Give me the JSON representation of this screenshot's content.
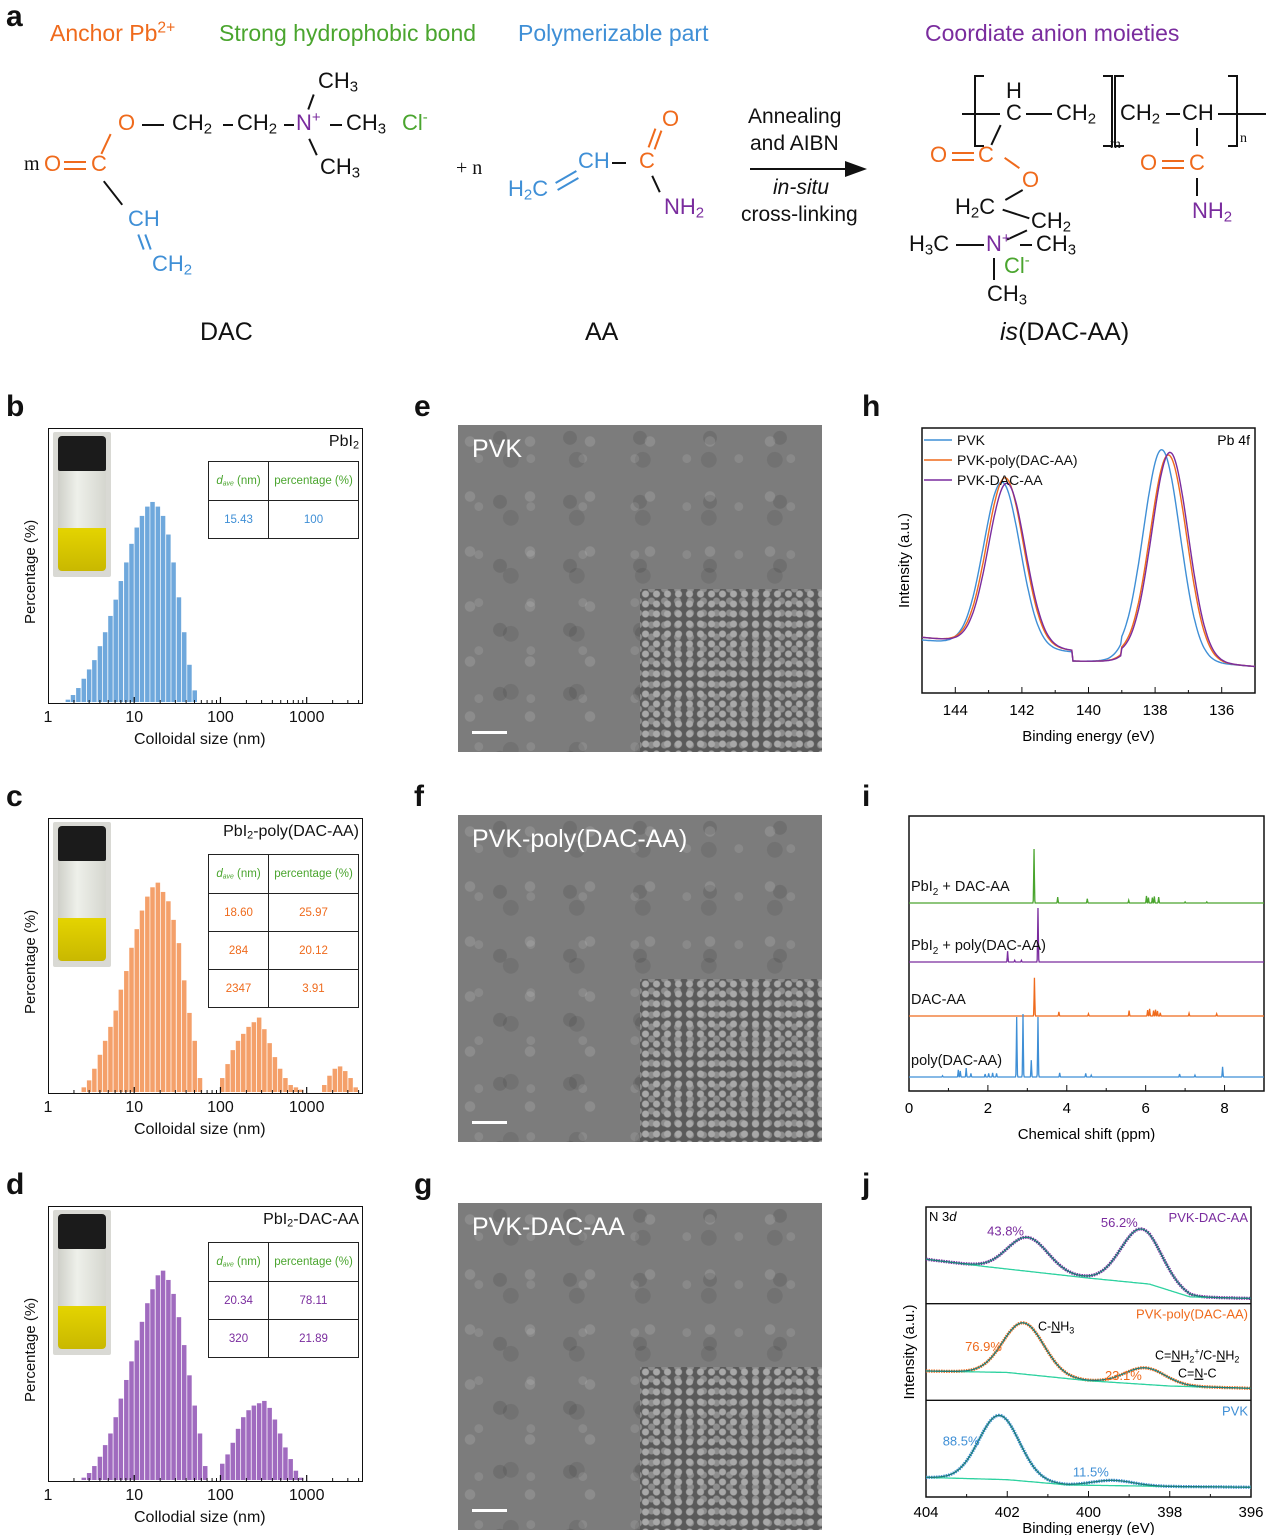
{
  "panel_labels": {
    "a": "a",
    "b": "b",
    "c": "c",
    "d": "d",
    "e": "e",
    "f": "f",
    "g": "g",
    "h": "h",
    "i": "i",
    "j": "j"
  },
  "panel_a": {
    "headers": {
      "anchor": "Anchor Pb",
      "anchor_sup": "2+",
      "hydrophobic": "Strong hydrophobic bond",
      "polymerizable": "Polymerizable part",
      "coordinate": "Coordiate anion moieties"
    },
    "dac": {
      "m": "m",
      "o_double": "O",
      "c": "C",
      "o_ester": "O",
      "ch2_a": "CH",
      "ch2_b": "CH",
      "sub2": "2",
      "n": "N",
      "n_plus": "+",
      "ch3": "CH",
      "sub3": "3",
      "cl": "Cl",
      "cl_minus": "-",
      "ch": "CH",
      "ch2_vinyl": "CH",
      "name": "DAC"
    },
    "plus_n": "+  n",
    "aa": {
      "h2c": "H",
      "c_sub": "2",
      "c_tail": "C",
      "ch": "CH",
      "c": "C",
      "o": "O",
      "nh2": "NH",
      "name": "AA"
    },
    "arrow": {
      "line1": "Annealing",
      "line2": "and AIBN",
      "line3": "in-situ",
      "line4": "cross-linking"
    },
    "product": {
      "h": "H",
      "c": "C",
      "ch2": "CH",
      "ch": "CH",
      "m": "m",
      "n": "n",
      "o_double": "O",
      "o": "O",
      "h2c": "H",
      "ch3": "CH",
      "h3c": "H",
      "nplus": "N",
      "cl": "Cl",
      "nh2": "NH",
      "name_italic": "is",
      "name_rest": "(DAC-AA)"
    }
  },
  "dls_panels": [
    {
      "id": "b",
      "title": "PbI",
      "title_sub": "2",
      "title_rest": "",
      "color": "#6fa8dc",
      "text_color": "#3f8fd6",
      "table_header": [
        "d",
        "ave",
        " (nm)",
        "percentage (%)"
      ],
      "table_rows": [
        [
          "15.43",
          "100"
        ]
      ],
      "xlabel": "Colloidal size (nm)",
      "ylabel": "Percentage (%)",
      "xticks": [
        "1",
        "10",
        "100",
        "1000"
      ]
    },
    {
      "id": "c",
      "title": "PbI",
      "title_sub": "2",
      "title_rest": "-poly(DAC-AA)",
      "color": "#f4a06a",
      "text_color": "#ef6a1c",
      "table_header": [
        "d",
        "ave",
        " (nm)",
        "percentage (%)"
      ],
      "table_rows": [
        [
          "18.60",
          "25.97"
        ],
        [
          "284",
          "20.12"
        ],
        [
          "2347",
          "3.91"
        ]
      ],
      "xlabel": "Colloidal size (nm)",
      "ylabel": "Percentage (%)",
      "xticks": [
        "1",
        "10",
        "100",
        "1000"
      ]
    },
    {
      "id": "d",
      "title": "PbI",
      "title_sub": "2",
      "title_rest": "-DAC-AA",
      "color": "#a06bbf",
      "text_color": "#7a2c9e",
      "table_header": [
        "d",
        "ave",
        " (nm)",
        "percentage (%)"
      ],
      "table_rows": [
        [
          "20.34",
          "78.11"
        ],
        [
          "320",
          "21.89"
        ]
      ],
      "xlabel": "Collodial size (nm)",
      "ylabel": "Percentage (%)",
      "xticks": [
        "1",
        "10",
        "100",
        "1000"
      ]
    }
  ],
  "sem_panels": [
    {
      "id": "e",
      "label": "PVK"
    },
    {
      "id": "f",
      "label": "PVK-poly(DAC-AA)"
    },
    {
      "id": "g",
      "label": "PVK-DAC-AA"
    }
  ],
  "chart_data": [
    {
      "panel": "b",
      "type": "bar",
      "title": "PbI2",
      "xlabel": "Colloidal size (nm)",
      "ylabel": "Percentage (%)",
      "xscale": "log",
      "xlim": [
        1,
        4500
      ],
      "ylim": [
        0,
        100
      ],
      "x": [
        1.7,
        1.95,
        2.25,
        2.6,
        3.0,
        3.45,
        4.0,
        4.6,
        5.3,
        6.1,
        7.0,
        8.1,
        9.3,
        10.7,
        12.3,
        14.2,
        16.3,
        18.8,
        21.6,
        24.9,
        28.6,
        33.0,
        38.0,
        43.7,
        50.3
      ],
      "values": [
        1,
        3,
        6,
        10,
        14,
        18,
        24,
        30,
        37,
        44,
        52,
        60,
        68,
        75,
        80,
        84,
        86,
        84,
        80,
        72,
        60,
        45,
        30,
        16,
        5
      ]
    },
    {
      "panel": "c",
      "type": "bar",
      "title": "PbI2-poly(DAC-AA)",
      "xlabel": "Colloidal size (nm)",
      "ylabel": "Percentage (%)",
      "xscale": "log",
      "xlim": [
        1,
        4500
      ],
      "ylim": [
        0,
        100
      ],
      "x": [
        2.6,
        3.0,
        3.45,
        4.0,
        4.6,
        5.3,
        6.1,
        7.0,
        8.1,
        9.3,
        10.7,
        12.3,
        14.2,
        16.3,
        18.8,
        21.6,
        24.9,
        28.6,
        33.0,
        38.0,
        43.7,
        50.3,
        57.9,
        105,
        121,
        139,
        160,
        184,
        212,
        244,
        281,
        323,
        372,
        428,
        492,
        567,
        652,
        750,
        863,
        1600,
        1840,
        2120,
        2440,
        2800,
        3230,
        3700
      ],
      "values": [
        2,
        5,
        10,
        16,
        22,
        28,
        35,
        44,
        52,
        62,
        70,
        78,
        84,
        88,
        90,
        86,
        82,
        74,
        64,
        48,
        34,
        22,
        6,
        6,
        12,
        18,
        22,
        25,
        28,
        30,
        32,
        27,
        21,
        15,
        10,
        6,
        3,
        2,
        1,
        3,
        7,
        10,
        11,
        9,
        6,
        2
      ]
    },
    {
      "panel": "d",
      "type": "bar",
      "title": "PbI2-DAC-AA",
      "xlabel": "Collodial size (nm)",
      "ylabel": "Percentage (%)",
      "xscale": "log",
      "xlim": [
        1,
        4500
      ],
      "ylim": [
        0,
        100
      ],
      "x": [
        2.6,
        3.0,
        3.45,
        4.0,
        4.6,
        5.3,
        6.1,
        7.0,
        8.1,
        9.3,
        10.7,
        12.3,
        14.2,
        16.3,
        18.8,
        21.6,
        24.9,
        28.6,
        33.0,
        38.0,
        43.7,
        50.3,
        57.9,
        66.6,
        105,
        121,
        139,
        160,
        184,
        212,
        244,
        281,
        323,
        372,
        428,
        492,
        567,
        652,
        750,
        863
      ],
      "values": [
        1,
        3,
        6,
        10,
        15,
        20,
        27,
        35,
        43,
        51,
        60,
        68,
        76,
        82,
        88,
        90,
        86,
        80,
        70,
        58,
        45,
        32,
        20,
        6,
        7,
        11,
        16,
        22,
        27,
        30,
        32,
        33,
        34,
        31,
        26,
        20,
        14,
        9,
        4,
        1
      ]
    },
    {
      "panel": "h",
      "type": "line",
      "title": "Pb 4f",
      "xlabel": "Binding energy (eV)",
      "ylabel": "Intensity (a.u.)",
      "xlim": [
        145,
        135
      ],
      "xticks": [
        "144",
        "142",
        "140",
        "138",
        "136"
      ],
      "xtick_values": [
        144,
        142,
        140,
        138,
        136
      ],
      "legend_position": "top-left",
      "series": [
        {
          "name": "PVK",
          "color": "#3f8fd6",
          "peaks": [
            {
              "center": 142.6,
              "height": 0.62
            },
            {
              "center": 137.8,
              "height": 0.79
            }
          ],
          "baseline_left": 0.2,
          "baseline_right": 0.1
        },
        {
          "name": "PVK-poly(DAC-AA)",
          "color": "#ef6a1c",
          "peaks": [
            {
              "center": 142.5,
              "height": 0.63
            },
            {
              "center": 137.6,
              "height": 0.77
            }
          ],
          "baseline_left": 0.21,
          "baseline_right": 0.1
        },
        {
          "name": "PVK-DAC-AA",
          "color": "#7a2c9e",
          "peaks": [
            {
              "center": 142.45,
              "height": 0.61
            },
            {
              "center": 137.55,
              "height": 0.78
            }
          ],
          "baseline_left": 0.21,
          "baseline_right": 0.1
        }
      ]
    },
    {
      "panel": "i",
      "type": "line",
      "xlabel": "Chemical shift (ppm)",
      "xlim": [
        0,
        9
      ],
      "xticks": [
        "0",
        "2",
        "4",
        "6",
        "8"
      ],
      "xtick_values": [
        0,
        2,
        4,
        6,
        8
      ],
      "series": [
        {
          "name": "PbI2 + DAC-AA",
          "label_main": "PbI",
          "label_sub": "2",
          "label_rest": " + DAC-AA",
          "color": "#4aa52e",
          "peaks": [
            [
              3.17,
              1.0
            ],
            [
              3.77,
              0.11
            ],
            [
              4.52,
              0.08
            ],
            [
              5.57,
              0.05
            ],
            [
              6.02,
              0.13
            ],
            [
              6.07,
              0.1
            ],
            [
              6.17,
              0.1
            ],
            [
              6.22,
              0.12
            ],
            [
              6.33,
              0.11
            ],
            [
              7.0,
              0.02
            ],
            [
              7.55,
              0.02
            ]
          ]
        },
        {
          "name": "PbI2 + poly(DAC-AA)",
          "label_main": "PbI",
          "label_sub": "2",
          "label_rest": " + poly(DAC-AA)",
          "color": "#7a2c9e",
          "peaks": [
            [
              2.5,
              0.2
            ],
            [
              2.68,
              0.03
            ],
            [
              2.85,
              0.03
            ],
            [
              3.27,
              1.0
            ]
          ]
        },
        {
          "name": "DAC-AA",
          "label_main": "DAC-AA",
          "label_sub": "",
          "label_rest": "",
          "color": "#ef6a1c",
          "peaks": [
            [
              3.18,
              0.85
            ],
            [
              3.8,
              0.09
            ],
            [
              4.55,
              0.05
            ],
            [
              5.58,
              0.12
            ],
            [
              6.05,
              0.13
            ],
            [
              6.1,
              0.16
            ],
            [
              6.2,
              0.12
            ],
            [
              6.25,
              0.14
            ],
            [
              6.3,
              0.11
            ],
            [
              6.37,
              0.07
            ],
            [
              7.1,
              0.06
            ],
            [
              7.8,
              0.05
            ]
          ]
        },
        {
          "name": "poly(DAC-AA)",
          "label_main": "poly(DAC-AA)",
          "label_sub": "",
          "label_rest": "",
          "color": "#3f8fd6",
          "peaks": [
            [
              0.85,
              0.02
            ],
            [
              1.25,
              0.12
            ],
            [
              1.3,
              0.1
            ],
            [
              1.45,
              0.15
            ],
            [
              1.57,
              0.06
            ],
            [
              1.93,
              0.05
            ],
            [
              2.02,
              0.06
            ],
            [
              2.12,
              0.07
            ],
            [
              2.22,
              0.06
            ],
            [
              2.73,
              1.0
            ],
            [
              2.89,
              1.05
            ],
            [
              3.1,
              0.28
            ],
            [
              3.27,
              1.0
            ],
            [
              3.82,
              0.07
            ],
            [
              4.48,
              0.06
            ],
            [
              4.62,
              0.03
            ],
            [
              6.86,
              0.05
            ],
            [
              7.25,
              0.03
            ],
            [
              7.95,
              0.17
            ]
          ]
        }
      ]
    },
    {
      "panel": "j",
      "type": "line",
      "title": "N 3d",
      "title_main": "N 3",
      "title_italic": "d",
      "xlabel": "Binding energy (eV)",
      "ylabel": "Intensity (a.u.)",
      "xlim": [
        404,
        396
      ],
      "xticks": [
        "404",
        "402",
        "400",
        "398",
        "396"
      ],
      "xtick_values": [
        404,
        402,
        400,
        398,
        396
      ],
      "subplots": [
        {
          "name": "PVK-DAC-AA",
          "color": "#7a2c9e",
          "components": [
            {
              "center": 401.5,
              "height": 0.45,
              "label": "43.8%"
            },
            {
              "center": 398.7,
              "height": 0.72,
              "label": "56.2%"
            }
          ],
          "baseline": [
            [
              404,
              0.55
            ],
            [
              402.5,
              0.45
            ],
            [
              400,
              0.3
            ],
            [
              398.5,
              0.22
            ],
            [
              397.5,
              0.05
            ],
            [
              396,
              0.03
            ]
          ]
        },
        {
          "name": "PVK-poly(DAC-AA)",
          "color": "#ef6a1c",
          "components": [
            {
              "center": 401.6,
              "height": 0.68,
              "label": "76.9%"
            },
            {
              "center": 398.6,
              "height": 0.22,
              "label": "23.1%"
            }
          ],
          "baseline": [
            [
              404,
              0.35
            ],
            [
              402,
              0.33
            ],
            [
              400,
              0.22
            ],
            [
              398,
              0.15
            ],
            [
              396,
              0.12
            ]
          ],
          "annotations": [
            "C-NH3",
            "C=NH2+/C-NH2",
            "C=N-C"
          ]
        },
        {
          "name": "PVK",
          "color": "#3f8fd6",
          "components": [
            {
              "center": 402.2,
              "height": 0.85,
              "label": "88.5%"
            },
            {
              "center": 399.4,
              "height": 0.07,
              "label": "11.5%"
            }
          ],
          "baseline": [
            [
              404,
              0.22
            ],
            [
              402,
              0.19
            ],
            [
              400.5,
              0.12
            ],
            [
              398,
              0.1
            ],
            [
              396,
              0.09
            ]
          ]
        }
      ],
      "annotations": {
        "c_nh3_pre": "C-",
        "c_nh3_u": "N",
        "c_nh3_post": "H",
        "c_nh3_sub": "3",
        "cnh2_a": "C=",
        "cnh2_u": "N",
        "cnh2_b": "H",
        "cnh2_sub": "2",
        "cnh2_sup": "+",
        "cnh2_c": "/C-",
        "cnh2_u2": "N",
        "cnh2_d": "H",
        "cnh2_sub2": "2",
        "cnc_a": "C=",
        "cnc_u": "N",
        "cnc_b": "-C"
      }
    }
  ]
}
